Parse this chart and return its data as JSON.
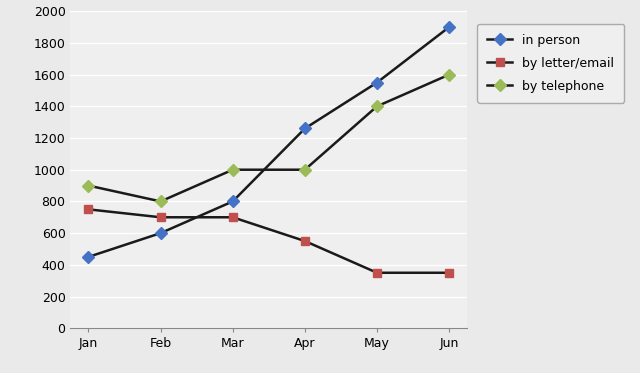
{
  "x_labels": [
    "Jan",
    "Feb",
    "Mar",
    "Apr",
    "May",
    "Jun"
  ],
  "series": [
    {
      "label": "in person",
      "values": [
        450,
        600,
        800,
        1260,
        1550,
        1900
      ],
      "marker_color": "#4472C4",
      "marker": "D",
      "markersize": 6
    },
    {
      "label": "by letter/email",
      "values": [
        750,
        700,
        700,
        550,
        350,
        350
      ],
      "marker_color": "#C0504D",
      "marker": "s",
      "markersize": 6
    },
    {
      "label": "by telephone",
      "values": [
        900,
        800,
        1000,
        1000,
        1400,
        1600
      ],
      "marker_color": "#9BBB59",
      "marker": "D",
      "markersize": 6
    }
  ],
  "line_color": "#1a1a1a",
  "linewidth": 1.8,
  "ylim": [
    0,
    2000
  ],
  "yticks": [
    0,
    200,
    400,
    600,
    800,
    1000,
    1200,
    1400,
    1600,
    1800,
    2000
  ],
  "background_color": "#EAEAEA",
  "plot_bg_color": "#F0EFEF",
  "grid_color": "#FFFFFF",
  "tick_fontsize": 9,
  "legend_fontsize": 9
}
